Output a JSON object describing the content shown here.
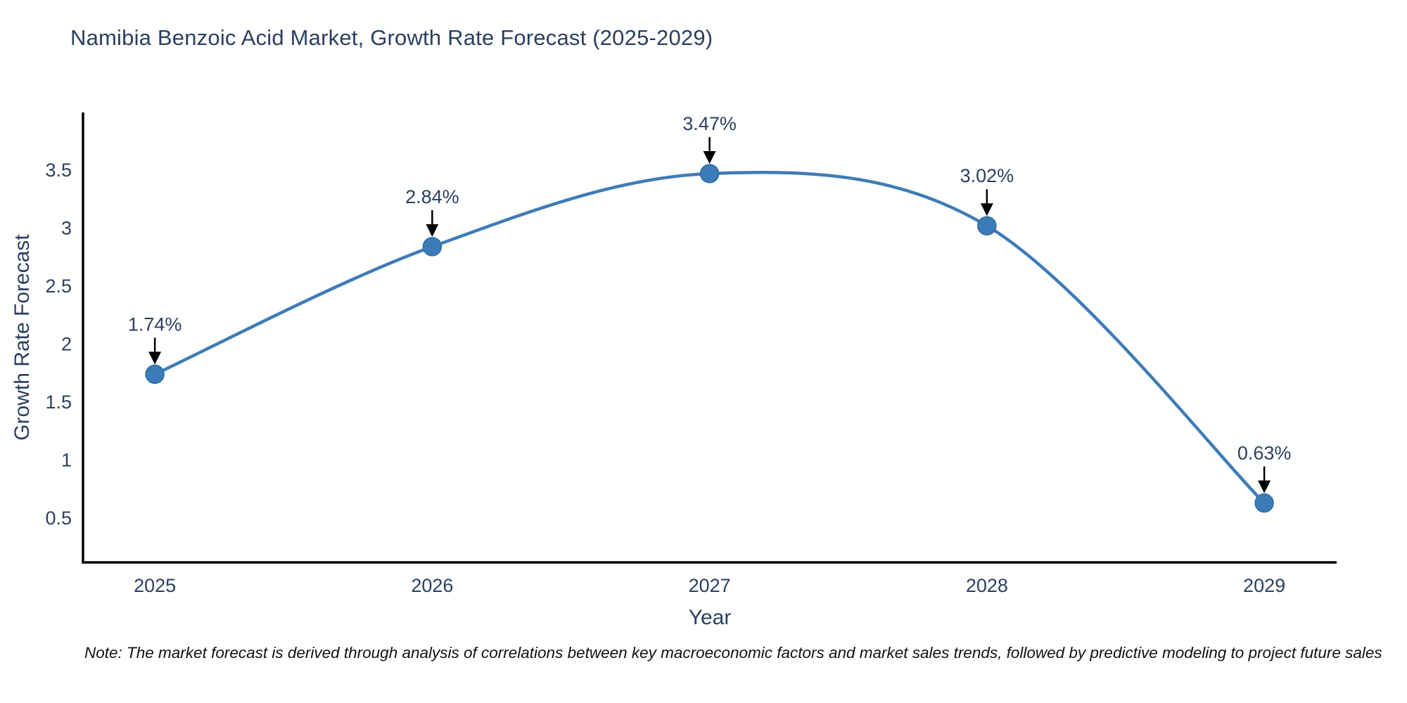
{
  "title": "Namibia Benzoic Acid Market, Growth Rate Forecast (2025-2029)",
  "note": "Note: The market forecast is derived through analysis of correlations between key macroeconomic factors and market sales trends, followed by predictive modeling to project future sales",
  "chart_data": {
    "type": "line",
    "title": "Namibia Benzoic Acid Market, Growth Rate Forecast (2025-2029)",
    "xlabel": "Year",
    "ylabel": "Growth Rate Forecast",
    "x": [
      2025,
      2026,
      2027,
      2028,
      2029
    ],
    "values": [
      1.74,
      2.84,
      3.47,
      3.02,
      0.63
    ],
    "point_labels": [
      "1.74%",
      "2.84%",
      "3.47%",
      "3.02%",
      "0.63%"
    ],
    "xticks": [
      "2025",
      "2026",
      "2027",
      "2028",
      "2029"
    ],
    "xtick_values": [
      2025,
      2026,
      2027,
      2028,
      2029
    ],
    "yticks": [
      "0.5",
      "1",
      "1.5",
      "2",
      "2.5",
      "3",
      "3.5"
    ],
    "ytick_values": [
      0.5,
      1,
      1.5,
      2,
      2.5,
      3,
      3.5
    ],
    "xlim": [
      2024.741,
      2029.261
    ],
    "ylim": [
      0.118,
      3.997
    ],
    "grid": false,
    "legend": "none",
    "line_shape": "spline",
    "colors": {
      "line": "#3f7cb6",
      "marker_fill": "#3a7bb8",
      "marker_edge": "#2e6da4",
      "axis_line": "#000000",
      "tick_text": "#2a3f5f",
      "annotation_text": "#2a3f5f",
      "annotation_arrow": "#000000",
      "background": "#ffffff"
    }
  }
}
